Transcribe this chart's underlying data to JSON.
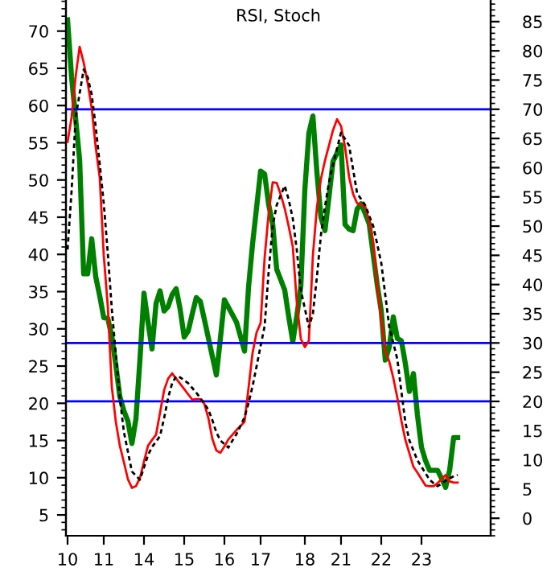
{
  "chart_data": {
    "type": "line",
    "title": "RSI, Stoch",
    "categories": [
      "10",
      null,
      null,
      null,
      null,
      null,
      null,
      null,
      null,
      "11",
      null,
      null,
      null,
      null,
      null,
      null,
      null,
      null,
      null,
      "14",
      null,
      null,
      null,
      null,
      null,
      null,
      null,
      null,
      null,
      "15",
      null,
      null,
      null,
      null,
      null,
      null,
      null,
      null,
      null,
      "16",
      null,
      null,
      null,
      null,
      null,
      null,
      null,
      null,
      "17",
      null,
      null,
      null,
      null,
      null,
      null,
      null,
      null,
      null,
      null,
      "18",
      null,
      null,
      null,
      null,
      null,
      null,
      null,
      null,
      "21",
      null,
      null,
      null,
      null,
      null,
      null,
      null,
      null,
      null,
      "22",
      null,
      null,
      null,
      null,
      null,
      null,
      null,
      null,
      null,
      "23",
      null,
      null,
      null,
      null,
      null,
      null,
      null,
      null,
      null
    ],
    "ylim": [
      2.2,
      74.1
    ],
    "yticks": [
      5,
      10,
      15,
      20,
      25,
      30,
      35,
      40,
      45,
      50,
      55,
      60,
      65,
      70
    ],
    "y2lim": [
      -3,
      88.6
    ],
    "y2ticks": [
      0,
      5,
      10,
      15,
      20,
      25,
      30,
      35,
      40,
      45,
      50,
      55,
      60,
      65,
      70,
      75,
      80,
      85
    ],
    "grid": false,
    "series": [
      {
        "color": "#008000",
        "axis": "y",
        "line_style": "solid",
        "values": [
          71.5,
          63.8,
          58.3,
          52.7,
          37.4,
          37.4,
          42.1,
          37,
          34.4,
          31.5,
          31.4,
          29,
          25.1,
          20.9,
          19,
          17.6,
          14.6,
          17.9,
          25.9,
          34.8,
          30.9,
          27.3,
          33.4,
          35.1,
          32.4,
          33,
          34.6,
          35.4,
          32.6,
          28.9,
          29.7,
          32,
          34.2,
          33.7,
          31.3,
          28.8,
          26.3,
          23.8,
          28.7,
          33.9,
          32.9,
          31.9,
          30.9,
          29,
          27,
          35.6,
          41.4,
          46.3,
          51.2,
          50.8,
          46.7,
          44.1,
          38,
          36.6,
          35.2,
          31.6,
          28.3,
          31.7,
          35.7,
          48.7,
          56.3,
          58.6,
          51,
          45,
          43.2,
          47.7,
          52.5,
          53.6,
          54.7,
          44,
          43.4,
          43.2,
          46.1,
          46.8,
          45.5,
          44.1,
          40,
          35.9,
          32.4,
          25.8,
          27.6,
          31.6,
          28.7,
          28.4,
          25.3,
          21.6,
          24,
          18.4,
          14.1,
          12.3,
          11,
          11,
          11,
          9.9,
          8.7,
          11,
          15.4,
          15.4
        ]
      },
      {
        "color": "#ff0000",
        "axis": "y2",
        "line_style": "solid",
        "values": [
          64.4,
          68.6,
          75.6,
          80.7,
          78,
          74.5,
          70.2,
          63.5,
          58.3,
          45,
          36.3,
          22.5,
          16.5,
          12.4,
          9.6,
          6.7,
          5.2,
          5.5,
          6.9,
          9.7,
          12.4,
          13.4,
          14.3,
          18.1,
          21.9,
          23.9,
          24.8,
          23.9,
          23,
          22.1,
          21.2,
          20.3,
          20.4,
          20.4,
          19.6,
          17.2,
          13.6,
          11.6,
          11.2,
          12.3,
          13.5,
          14.3,
          15.1,
          15.8,
          16.5,
          22.3,
          28.3,
          31.8,
          33.4,
          44.6,
          52.2,
          57.5,
          57.4,
          55.4,
          53,
          49.9,
          46.5,
          36.9,
          30.7,
          29.3,
          30.4,
          45,
          53.2,
          58.1,
          61.2,
          63.8,
          66.4,
          68.3,
          67.1,
          63.5,
          58.4,
          55.5,
          53.9,
          53.7,
          53.4,
          50.8,
          47.2,
          39.6,
          34.1,
          28.6,
          26.8,
          24,
          20.6,
          16.7,
          13.4,
          11.1,
          8.8,
          7.8,
          6.7,
          5.6,
          5.5,
          5.5,
          6,
          6.7,
          7.4,
          6.3,
          6.1,
          6.1
        ]
      },
      {
        "color": "#000000",
        "axis": "y2",
        "line_style": "dashed",
        "values": [
          46,
          56,
          68.5,
          72.7,
          76.8,
          75.5,
          72.5,
          67,
          60.6,
          53.9,
          45.4,
          35.8,
          28.1,
          20.6,
          14.8,
          11.4,
          8,
          7.3,
          6.6,
          8.7,
          10.8,
          12.2,
          13.1,
          14.1,
          17.1,
          20.6,
          23.1,
          24.3,
          24.1,
          23.6,
          23.1,
          22.3,
          21.5,
          20.6,
          19.6,
          18.6,
          16.8,
          14.7,
          13.3,
          12.7,
          12.1,
          13.3,
          14.4,
          15.8,
          17.3,
          19.7,
          22.6,
          26,
          29.5,
          32.9,
          42.2,
          50,
          53.6,
          55.3,
          56.9,
          54.5,
          51.3,
          45.9,
          39,
          35.9,
          32.7,
          35,
          41.3,
          48.5,
          53.3,
          57.5,
          60.5,
          63.3,
          66,
          64.9,
          63.8,
          59.7,
          55.6,
          54.6,
          53.6,
          51.8,
          50,
          46.9,
          43.7,
          38.2,
          32.7,
          30,
          27.2,
          21.7,
          16.4,
          13.3,
          11.6,
          9.9,
          8.8,
          7.7,
          6.6,
          6,
          5.5,
          5.9,
          6.4,
          6.8,
          7.2,
          7.4
        ]
      }
    ],
    "ref_lines": [
      {
        "axis": "y2",
        "value": 70,
        "color": "#0000ff"
      },
      {
        "axis": "y2",
        "value": 30,
        "color": "#0000ff"
      },
      {
        "axis": "y2",
        "value": 20,
        "color": "#0000ff"
      }
    ]
  }
}
